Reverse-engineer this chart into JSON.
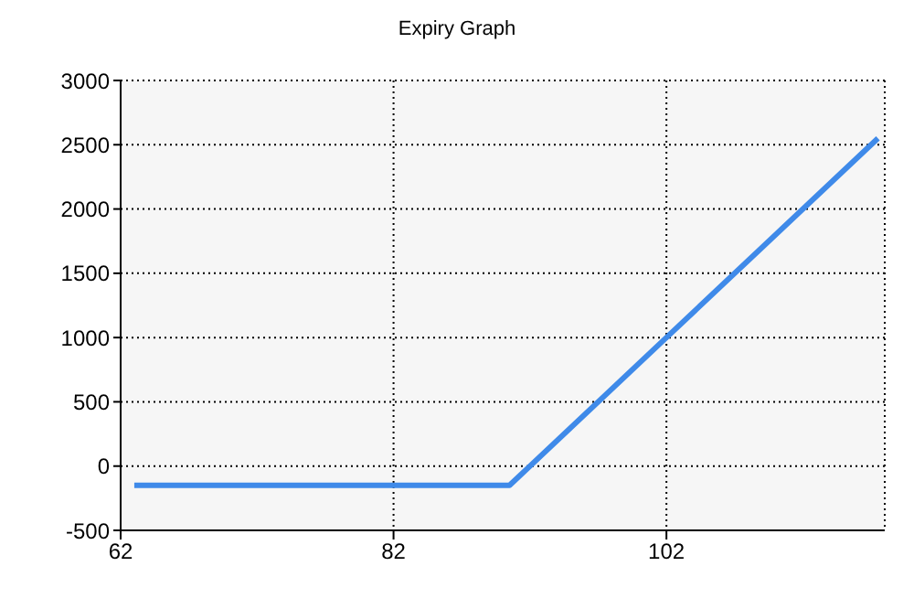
{
  "chart_data": {
    "type": "line",
    "title": "Expiry Graph",
    "x": [
      63,
      90.5,
      102,
      117.5
    ],
    "series": [
      {
        "color": "#3f8ae9",
        "values": [
          -150,
          -150,
          1000,
          2550
        ]
      }
    ],
    "xlim": [
      62,
      118
    ],
    "xticks": [
      62,
      82,
      102
    ],
    "ylim": [
      -500,
      3000
    ],
    "yticks": [
      -500,
      0,
      500,
      1000,
      1500,
      2000,
      2500,
      3000
    ],
    "grid": true,
    "legend": false,
    "marker": "none",
    "line_style": "solid"
  }
}
